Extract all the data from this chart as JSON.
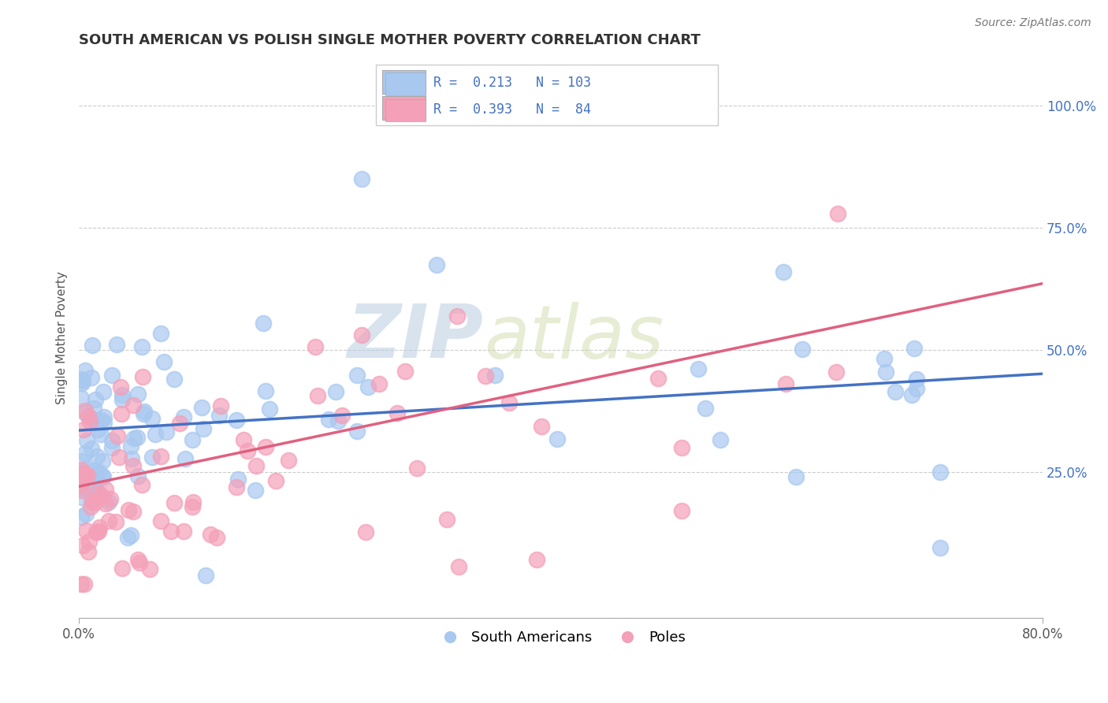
{
  "title": "SOUTH AMERICAN VS POLISH SINGLE MOTHER POVERTY CORRELATION CHART",
  "source_text": "Source: ZipAtlas.com",
  "ylabel": "Single Mother Poverty",
  "xlim": [
    0.0,
    0.8
  ],
  "ylim": [
    -0.05,
    1.1
  ],
  "ytick_values_right": [
    0.25,
    0.5,
    0.75,
    1.0
  ],
  "ytick_labels_right": [
    "25.0%",
    "50.0%",
    "75.0%",
    "100.0%"
  ],
  "blue_R": 0.213,
  "blue_N": 103,
  "pink_R": 0.393,
  "pink_N": 84,
  "blue_color": "#A8C8F0",
  "pink_color": "#F4A0B8",
  "blue_line_color": "#4472C4",
  "pink_line_color": "#E06080",
  "watermark_color": "#C8D8E8",
  "watermark_alpha": 0.5,
  "legend_label_blue": "South Americans",
  "legend_label_pink": "Poles",
  "background_color": "#FFFFFF",
  "grid_color": "#CCCCCC",
  "title_color": "#333333",
  "legend_R_N_color": "#4472C4",
  "blue_intercept": 0.335,
  "blue_slope": 0.145,
  "pink_intercept": 0.22,
  "pink_slope": 0.52
}
